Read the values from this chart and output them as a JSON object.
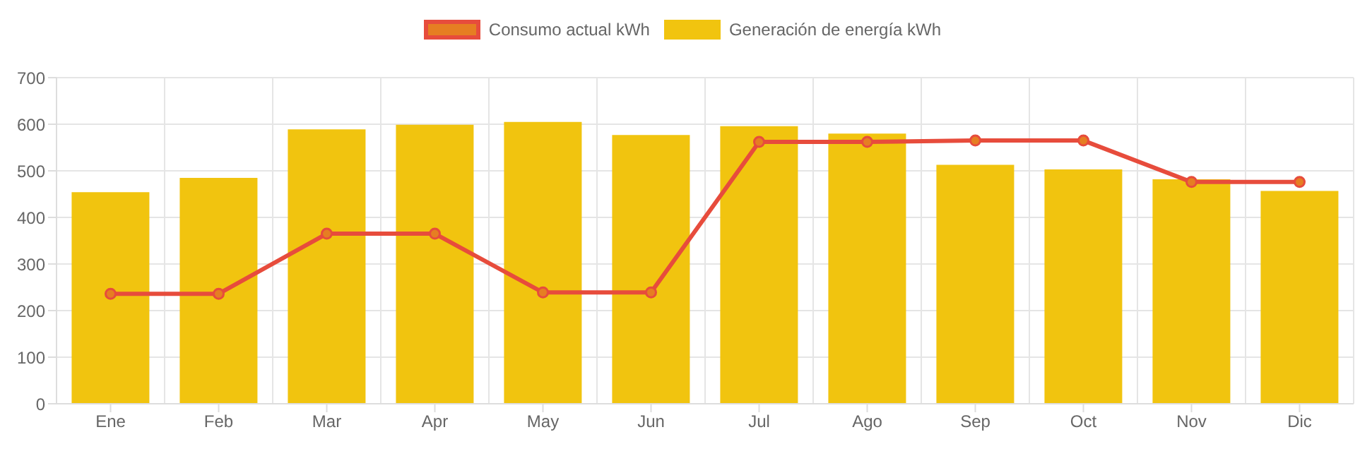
{
  "chart_data": {
    "type": "bar",
    "categories": [
      "Ene",
      "Feb",
      "Mar",
      "Apr",
      "May",
      "Jun",
      "Jul",
      "Ago",
      "Sep",
      "Oct",
      "Nov",
      "Dic"
    ],
    "series": [
      {
        "name": "Consumo actual kWh",
        "type": "line",
        "color": "#e74c3c",
        "marker": "circle",
        "values": [
          236,
          236,
          365,
          365,
          239,
          239,
          562,
          562,
          565,
          565,
          476,
          476
        ]
      },
      {
        "name": "Generación de energía kWh",
        "color": "#f1c40f",
        "values": [
          454,
          485,
          589,
          599,
          605,
          577,
          596,
          580,
          513,
          503,
          482,
          457
        ]
      }
    ],
    "ylim": [
      0,
      700
    ],
    "yticks": [
      0,
      100,
      200,
      300,
      400,
      500,
      600,
      700
    ],
    "grid": true,
    "legend": "top"
  }
}
